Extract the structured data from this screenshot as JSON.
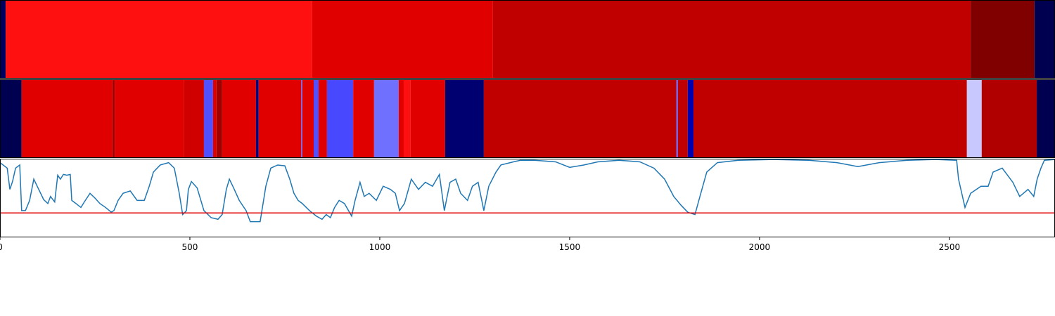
{
  "chart_data": {
    "type": "line",
    "xlim": [
      0,
      2778
    ],
    "xticks": [
      0,
      500,
      1000,
      1500,
      2000,
      2500
    ],
    "ylim": [
      0,
      1
    ],
    "strips": [
      {
        "segments": [
          {
            "start": 0,
            "end": 15,
            "color": "#000060"
          },
          {
            "start": 15,
            "end": 822,
            "color": "#ff1010"
          },
          {
            "start": 822,
            "end": 1298,
            "color": "#e00000"
          },
          {
            "start": 1298,
            "end": 2556,
            "color": "#c00000"
          },
          {
            "start": 2556,
            "end": 2724,
            "color": "#800000"
          },
          {
            "start": 2724,
            "end": 2778,
            "color": "#000050"
          }
        ]
      },
      {
        "segments": [
          {
            "start": 0,
            "end": 57,
            "color": "#000050"
          },
          {
            "start": 57,
            "end": 296,
            "color": "#e00000"
          },
          {
            "start": 296,
            "end": 302,
            "color": "#a00000"
          },
          {
            "start": 302,
            "end": 485,
            "color": "#e00000"
          },
          {
            "start": 485,
            "end": 537,
            "color": "#d00000"
          },
          {
            "start": 537,
            "end": 561,
            "color": "#5050ff"
          },
          {
            "start": 561,
            "end": 570,
            "color": "#e00000"
          },
          {
            "start": 570,
            "end": 585,
            "color": "#a00000"
          },
          {
            "start": 585,
            "end": 674,
            "color": "#e00000"
          },
          {
            "start": 674,
            "end": 681,
            "color": "#000080"
          },
          {
            "start": 681,
            "end": 793,
            "color": "#e00000"
          },
          {
            "start": 793,
            "end": 796,
            "color": "#6060ff"
          },
          {
            "start": 796,
            "end": 826,
            "color": "#e00000"
          },
          {
            "start": 826,
            "end": 839,
            "color": "#5050ff"
          },
          {
            "start": 839,
            "end": 861,
            "color": "#e00000"
          },
          {
            "start": 861,
            "end": 930,
            "color": "#4848ff"
          },
          {
            "start": 930,
            "end": 985,
            "color": "#e00000"
          },
          {
            "start": 985,
            "end": 1050,
            "color": "#7070ff"
          },
          {
            "start": 1050,
            "end": 1063,
            "color": "#e00000"
          },
          {
            "start": 1063,
            "end": 1081,
            "color": "#ff1010"
          },
          {
            "start": 1081,
            "end": 1172,
            "color": "#e00000"
          },
          {
            "start": 1172,
            "end": 1274,
            "color": "#000070"
          },
          {
            "start": 1274,
            "end": 1781,
            "color": "#c00000"
          },
          {
            "start": 1781,
            "end": 1785,
            "color": "#6060ff"
          },
          {
            "start": 1785,
            "end": 1811,
            "color": "#c00000"
          },
          {
            "start": 1811,
            "end": 1826,
            "color": "#0000b0"
          },
          {
            "start": 1826,
            "end": 2546,
            "color": "#c00000"
          },
          {
            "start": 2546,
            "end": 2585,
            "color": "#c8c8ff"
          },
          {
            "start": 2585,
            "end": 2730,
            "color": "#b00000"
          },
          {
            "start": 2730,
            "end": 2778,
            "color": "#000050"
          }
        ]
      }
    ],
    "threshold": 0.31,
    "threshold_color": "#e00000",
    "series": [
      {
        "color": "#1f77b4",
        "x": [
          0,
          19,
          26,
          33,
          41,
          52,
          57,
          67,
          78,
          89,
          102,
          115,
          126,
          133,
          144,
          152,
          159,
          167,
          176,
          185,
          189,
          200,
          213,
          222,
          237,
          250,
          263,
          278,
          293,
          300,
          311,
          324,
          343,
          361,
          380,
          393,
          404,
          422,
          444,
          459,
          472,
          481,
          491,
          496,
          504,
          519,
          537,
          556,
          574,
          585,
          596,
          604,
          615,
          630,
          648,
          659,
          685,
          700,
          713,
          731,
          750,
          763,
          774,
          785,
          796,
          815,
          833,
          848,
          859,
          870,
          881,
          893,
          907,
          926,
          935,
          948,
          959,
          972,
          991,
          1009,
          1028,
          1041,
          1052,
          1065,
          1083,
          1102,
          1120,
          1139,
          1157,
          1170,
          1185,
          1200,
          1213,
          1231,
          1244,
          1259,
          1274,
          1287,
          1306,
          1319,
          1352,
          1370,
          1407,
          1463,
          1500,
          1537,
          1574,
          1630,
          1685,
          1722,
          1750,
          1774,
          1793,
          1811,
          1830,
          1843,
          1861,
          1889,
          1944,
          2037,
          2130,
          2204,
          2259,
          2315,
          2389,
          2463,
          2519,
          2524,
          2541,
          2556,
          2583,
          2602,
          2615,
          2639,
          2667,
          2685,
          2707,
          2722,
          2731,
          2741,
          2750,
          2778
        ],
        "values": [
          0.95,
          0.88,
          0.61,
          0.71,
          0.88,
          0.92,
          0.34,
          0.34,
          0.47,
          0.74,
          0.61,
          0.48,
          0.43,
          0.52,
          0.45,
          0.79,
          0.74,
          0.8,
          0.79,
          0.8,
          0.47,
          0.43,
          0.38,
          0.45,
          0.56,
          0.5,
          0.43,
          0.38,
          0.32,
          0.34,
          0.47,
          0.56,
          0.59,
          0.47,
          0.47,
          0.65,
          0.83,
          0.92,
          0.95,
          0.88,
          0.56,
          0.29,
          0.34,
          0.61,
          0.71,
          0.63,
          0.34,
          0.25,
          0.23,
          0.29,
          0.61,
          0.74,
          0.63,
          0.47,
          0.34,
          0.2,
          0.2,
          0.65,
          0.88,
          0.92,
          0.91,
          0.74,
          0.56,
          0.47,
          0.43,
          0.34,
          0.27,
          0.23,
          0.29,
          0.25,
          0.38,
          0.47,
          0.43,
          0.27,
          0.47,
          0.7,
          0.52,
          0.56,
          0.47,
          0.65,
          0.61,
          0.56,
          0.34,
          0.43,
          0.74,
          0.61,
          0.7,
          0.65,
          0.8,
          0.34,
          0.7,
          0.74,
          0.56,
          0.47,
          0.65,
          0.7,
          0.34,
          0.65,
          0.83,
          0.92,
          0.96,
          0.98,
          0.98,
          0.96,
          0.89,
          0.92,
          0.96,
          0.98,
          0.96,
          0.88,
          0.74,
          0.52,
          0.41,
          0.32,
          0.29,
          0.52,
          0.83,
          0.95,
          0.98,
          0.99,
          0.98,
          0.95,
          0.9,
          0.95,
          0.98,
          0.99,
          0.98,
          0.74,
          0.38,
          0.56,
          0.65,
          0.65,
          0.83,
          0.88,
          0.7,
          0.52,
          0.61,
          0.52,
          0.74,
          0.88,
          0.98,
          0.99
        ]
      }
    ]
  }
}
